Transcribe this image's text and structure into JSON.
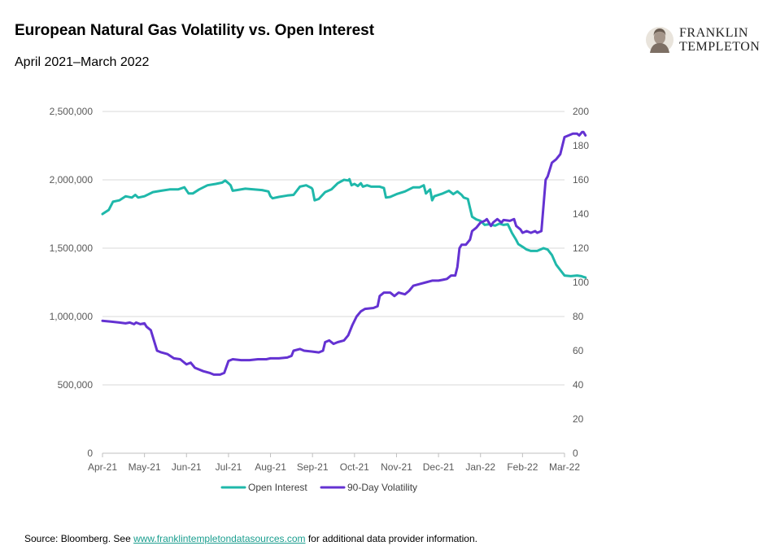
{
  "header": {
    "title": "European Natural Gas Volatility vs. Open Interest",
    "subtitle": "April 2021–March 2022",
    "logo_line1": "FRANKLIN",
    "logo_line2": "TEMPLETON"
  },
  "footer": {
    "source_prefix": "Source: Bloomberg. See ",
    "source_link": "www.franklintempletondatasources.com",
    "source_suffix": " for additional data provider information."
  },
  "chart_data": {
    "type": "line",
    "title": "European Natural Gas Volatility vs. Open Interest",
    "subtitle": "April 2021–March 2022",
    "x_ticks": [
      "Apr-21",
      "May-21",
      "Jun-21",
      "Jul-21",
      "Aug-21",
      "Sep-21",
      "Oct-21",
      "Nov-21",
      "Dec-21",
      "Jan-22",
      "Feb-22",
      "Mar-22"
    ],
    "y_left": {
      "ylim": [
        0,
        2500000
      ],
      "ticks": [
        "0",
        "500,000",
        "1,000,000",
        "1,500,000",
        "2,000,000",
        "2,500,000"
      ],
      "tick_values": [
        0,
        500000,
        1000000,
        1500000,
        2000000,
        2500000
      ]
    },
    "y_right": {
      "ylim": [
        0,
        200
      ],
      "ticks": [
        "0",
        "20",
        "40",
        "60",
        "80",
        "100",
        "120",
        "140",
        "160",
        "180",
        "200"
      ],
      "tick_values": [
        0,
        20,
        40,
        60,
        80,
        100,
        120,
        140,
        160,
        180,
        200
      ]
    },
    "grid": true,
    "legend_position": "bottom",
    "series": [
      {
        "name": "Open Interest",
        "axis": "left",
        "color": "#1fb8aa",
        "points": [
          [
            0.0,
            1750000
          ],
          [
            0.15,
            1780000
          ],
          [
            0.25,
            1840000
          ],
          [
            0.4,
            1850000
          ],
          [
            0.55,
            1880000
          ],
          [
            0.7,
            1870000
          ],
          [
            0.78,
            1890000
          ],
          [
            0.85,
            1870000
          ],
          [
            1.0,
            1880000
          ],
          [
            1.2,
            1910000
          ],
          [
            1.4,
            1920000
          ],
          [
            1.6,
            1930000
          ],
          [
            1.8,
            1930000
          ],
          [
            1.95,
            1945000
          ],
          [
            2.05,
            1900000
          ],
          [
            2.15,
            1900000
          ],
          [
            2.3,
            1930000
          ],
          [
            2.5,
            1960000
          ],
          [
            2.7,
            1970000
          ],
          [
            2.85,
            1980000
          ],
          [
            2.92,
            1995000
          ],
          [
            3.0,
            1975000
          ],
          [
            3.05,
            1960000
          ],
          [
            3.1,
            1920000
          ],
          [
            3.2,
            1925000
          ],
          [
            3.4,
            1935000
          ],
          [
            3.6,
            1930000
          ],
          [
            3.8,
            1925000
          ],
          [
            3.95,
            1915000
          ],
          [
            4.0,
            1880000
          ],
          [
            4.05,
            1865000
          ],
          [
            4.2,
            1875000
          ],
          [
            4.4,
            1885000
          ],
          [
            4.55,
            1890000
          ],
          [
            4.7,
            1950000
          ],
          [
            4.85,
            1960000
          ],
          [
            4.98,
            1940000
          ],
          [
            5.0,
            1930000
          ],
          [
            5.05,
            1850000
          ],
          [
            5.15,
            1860000
          ],
          [
            5.3,
            1910000
          ],
          [
            5.45,
            1930000
          ],
          [
            5.6,
            1975000
          ],
          [
            5.75,
            2000000
          ],
          [
            5.85,
            1995000
          ],
          [
            5.88,
            2005000
          ],
          [
            5.93,
            1960000
          ],
          [
            6.0,
            1970000
          ],
          [
            6.08,
            1955000
          ],
          [
            6.15,
            1975000
          ],
          [
            6.2,
            1950000
          ],
          [
            6.3,
            1960000
          ],
          [
            6.4,
            1950000
          ],
          [
            6.6,
            1950000
          ],
          [
            6.7,
            1940000
          ],
          [
            6.75,
            1870000
          ],
          [
            6.85,
            1875000
          ],
          [
            7.0,
            1895000
          ],
          [
            7.2,
            1915000
          ],
          [
            7.4,
            1945000
          ],
          [
            7.55,
            1945000
          ],
          [
            7.65,
            1960000
          ],
          [
            7.7,
            1900000
          ],
          [
            7.8,
            1930000
          ],
          [
            7.85,
            1850000
          ],
          [
            7.9,
            1880000
          ],
          [
            8.1,
            1900000
          ],
          [
            8.25,
            1920000
          ],
          [
            8.35,
            1895000
          ],
          [
            8.45,
            1915000
          ],
          [
            8.55,
            1890000
          ],
          [
            8.6,
            1870000
          ],
          [
            8.7,
            1860000
          ],
          [
            8.8,
            1730000
          ],
          [
            8.9,
            1710000
          ],
          [
            9.0,
            1700000
          ],
          [
            9.1,
            1670000
          ],
          [
            9.2,
            1675000
          ],
          [
            9.35,
            1665000
          ],
          [
            9.45,
            1680000
          ],
          [
            9.55,
            1670000
          ],
          [
            9.65,
            1675000
          ],
          [
            9.75,
            1610000
          ],
          [
            9.85,
            1560000
          ],
          [
            9.9,
            1530000
          ],
          [
            10.0,
            1510000
          ],
          [
            10.1,
            1490000
          ],
          [
            10.2,
            1480000
          ],
          [
            10.35,
            1480000
          ],
          [
            10.5,
            1500000
          ],
          [
            10.6,
            1490000
          ],
          [
            10.7,
            1450000
          ],
          [
            10.8,
            1380000
          ],
          [
            10.9,
            1340000
          ],
          [
            11.0,
            1300000
          ],
          [
            11.15,
            1295000
          ],
          [
            11.3,
            1300000
          ],
          [
            11.4,
            1295000
          ],
          [
            11.45,
            1290000
          ],
          [
            11.5,
            1285000
          ]
        ]
      },
      {
        "name": "90-Day Volatility",
        "axis": "right",
        "color": "#6432d2",
        "points": [
          [
            0.0,
            77.5
          ],
          [
            0.2,
            77
          ],
          [
            0.4,
            76.5
          ],
          [
            0.55,
            76
          ],
          [
            0.65,
            76.5
          ],
          [
            0.75,
            75.5
          ],
          [
            0.8,
            76.5
          ],
          [
            0.9,
            75.5
          ],
          [
            1.0,
            76
          ],
          [
            1.05,
            74
          ],
          [
            1.15,
            72
          ],
          [
            1.3,
            60
          ],
          [
            1.4,
            59
          ],
          [
            1.55,
            58
          ],
          [
            1.7,
            55.5
          ],
          [
            1.85,
            55
          ],
          [
            2.0,
            52
          ],
          [
            2.1,
            53
          ],
          [
            2.2,
            50
          ],
          [
            2.4,
            48
          ],
          [
            2.55,
            47
          ],
          [
            2.65,
            46
          ],
          [
            2.8,
            46
          ],
          [
            2.9,
            47
          ],
          [
            3.0,
            54
          ],
          [
            3.1,
            55
          ],
          [
            3.3,
            54.5
          ],
          [
            3.5,
            54.5
          ],
          [
            3.7,
            55
          ],
          [
            3.9,
            55
          ],
          [
            4.0,
            55.5
          ],
          [
            4.2,
            55.5
          ],
          [
            4.4,
            56
          ],
          [
            4.5,
            57
          ],
          [
            4.55,
            60
          ],
          [
            4.7,
            61
          ],
          [
            4.8,
            60
          ],
          [
            5.0,
            59.5
          ],
          [
            5.15,
            59
          ],
          [
            5.25,
            60
          ],
          [
            5.3,
            65
          ],
          [
            5.4,
            66
          ],
          [
            5.5,
            64
          ],
          [
            5.6,
            65
          ],
          [
            5.75,
            66
          ],
          [
            5.85,
            69
          ],
          [
            5.95,
            75
          ],
          [
            6.05,
            80
          ],
          [
            6.15,
            83
          ],
          [
            6.25,
            84.5
          ],
          [
            6.45,
            85
          ],
          [
            6.55,
            86
          ],
          [
            6.6,
            92
          ],
          [
            6.7,
            94
          ],
          [
            6.85,
            94
          ],
          [
            6.95,
            92
          ],
          [
            7.05,
            94
          ],
          [
            7.2,
            93
          ],
          [
            7.3,
            95
          ],
          [
            7.4,
            98
          ],
          [
            7.55,
            99
          ],
          [
            7.7,
            100
          ],
          [
            7.85,
            101
          ],
          [
            8.0,
            101
          ],
          [
            8.1,
            101.5
          ],
          [
            8.2,
            102
          ],
          [
            8.3,
            104
          ],
          [
            8.4,
            104
          ],
          [
            8.45,
            109
          ],
          [
            8.5,
            120
          ],
          [
            8.55,
            122
          ],
          [
            8.65,
            122
          ],
          [
            8.75,
            125
          ],
          [
            8.8,
            130
          ],
          [
            8.9,
            132
          ],
          [
            9.0,
            135
          ],
          [
            9.1,
            136
          ],
          [
            9.15,
            137
          ],
          [
            9.25,
            133
          ],
          [
            9.3,
            135
          ],
          [
            9.4,
            137
          ],
          [
            9.5,
            135
          ],
          [
            9.55,
            136.5
          ],
          [
            9.7,
            136
          ],
          [
            9.8,
            137
          ],
          [
            9.85,
            133
          ],
          [
            9.95,
            131
          ],
          [
            10.0,
            129
          ],
          [
            10.1,
            130
          ],
          [
            10.2,
            129
          ],
          [
            10.3,
            130
          ],
          [
            10.35,
            129
          ],
          [
            10.45,
            130
          ],
          [
            10.55,
            160
          ],
          [
            10.6,
            162
          ],
          [
            10.7,
            170
          ],
          [
            10.8,
            172
          ],
          [
            10.9,
            175
          ],
          [
            11.0,
            185
          ],
          [
            11.1,
            186
          ],
          [
            11.2,
            187
          ],
          [
            11.3,
            187
          ],
          [
            11.35,
            186
          ],
          [
            11.42,
            188
          ],
          [
            11.45,
            188
          ],
          [
            11.5,
            186
          ]
        ]
      }
    ]
  }
}
